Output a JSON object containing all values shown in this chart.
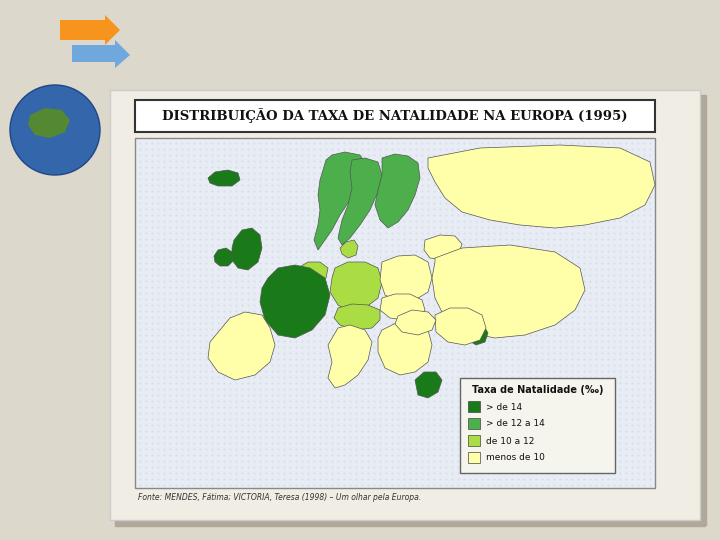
{
  "title": "DISTRIBUIÇÃO DA TAXA DE NATALIDADE NA EUROPA (1995)",
  "source_text": "Fonte: MENDES, Fátima; VICTORIA, Teresa (1998) – Um olhar pela Europa.",
  "legend_title": "Taxa de Natalidade (‰)",
  "legend_items": [
    {
      "label": "> de 14",
      "color": "#1a7a1a"
    },
    {
      "label": "> de 12 a 14",
      "color": "#4caf4c"
    },
    {
      "label": "de 10 a 12",
      "color": "#aadd44"
    },
    {
      "label": "menos de 10",
      "color": "#ffffaa"
    }
  ],
  "bg_color": "#ddd8cc",
  "slide_bg": "#f0ede4",
  "map_bg": "#e8e8f0",
  "map_border": "#888888",
  "title_box_color": "#ffffff",
  "title_border": "#333333",
  "map_dot_color": "#ccccdd",
  "arrow_orange": "#f7941d",
  "arrow_blue": "#6fa8dc"
}
